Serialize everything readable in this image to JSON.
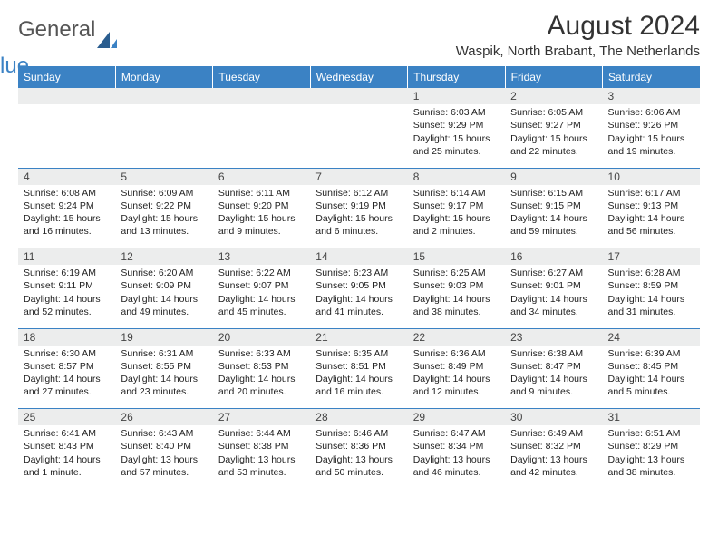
{
  "logo": {
    "text1": "General",
    "text2": "Blue"
  },
  "title": "August 2024",
  "location": "Waspik, North Brabant, The Netherlands",
  "colors": {
    "header_bg": "#3b82c4",
    "header_text": "#ffffff",
    "daynum_bg": "#eceded",
    "border": "#3b82c4",
    "body_text": "#222222"
  },
  "weekdays": [
    "Sunday",
    "Monday",
    "Tuesday",
    "Wednesday",
    "Thursday",
    "Friday",
    "Saturday"
  ],
  "weeks": [
    [
      null,
      null,
      null,
      null,
      {
        "n": "1",
        "sr": "Sunrise: 6:03 AM",
        "ss": "Sunset: 9:29 PM",
        "dl": "Daylight: 15 hours and 25 minutes."
      },
      {
        "n": "2",
        "sr": "Sunrise: 6:05 AM",
        "ss": "Sunset: 9:27 PM",
        "dl": "Daylight: 15 hours and 22 minutes."
      },
      {
        "n": "3",
        "sr": "Sunrise: 6:06 AM",
        "ss": "Sunset: 9:26 PM",
        "dl": "Daylight: 15 hours and 19 minutes."
      }
    ],
    [
      {
        "n": "4",
        "sr": "Sunrise: 6:08 AM",
        "ss": "Sunset: 9:24 PM",
        "dl": "Daylight: 15 hours and 16 minutes."
      },
      {
        "n": "5",
        "sr": "Sunrise: 6:09 AM",
        "ss": "Sunset: 9:22 PM",
        "dl": "Daylight: 15 hours and 13 minutes."
      },
      {
        "n": "6",
        "sr": "Sunrise: 6:11 AM",
        "ss": "Sunset: 9:20 PM",
        "dl": "Daylight: 15 hours and 9 minutes."
      },
      {
        "n": "7",
        "sr": "Sunrise: 6:12 AM",
        "ss": "Sunset: 9:19 PM",
        "dl": "Daylight: 15 hours and 6 minutes."
      },
      {
        "n": "8",
        "sr": "Sunrise: 6:14 AM",
        "ss": "Sunset: 9:17 PM",
        "dl": "Daylight: 15 hours and 2 minutes."
      },
      {
        "n": "9",
        "sr": "Sunrise: 6:15 AM",
        "ss": "Sunset: 9:15 PM",
        "dl": "Daylight: 14 hours and 59 minutes."
      },
      {
        "n": "10",
        "sr": "Sunrise: 6:17 AM",
        "ss": "Sunset: 9:13 PM",
        "dl": "Daylight: 14 hours and 56 minutes."
      }
    ],
    [
      {
        "n": "11",
        "sr": "Sunrise: 6:19 AM",
        "ss": "Sunset: 9:11 PM",
        "dl": "Daylight: 14 hours and 52 minutes."
      },
      {
        "n": "12",
        "sr": "Sunrise: 6:20 AM",
        "ss": "Sunset: 9:09 PM",
        "dl": "Daylight: 14 hours and 49 minutes."
      },
      {
        "n": "13",
        "sr": "Sunrise: 6:22 AM",
        "ss": "Sunset: 9:07 PM",
        "dl": "Daylight: 14 hours and 45 minutes."
      },
      {
        "n": "14",
        "sr": "Sunrise: 6:23 AM",
        "ss": "Sunset: 9:05 PM",
        "dl": "Daylight: 14 hours and 41 minutes."
      },
      {
        "n": "15",
        "sr": "Sunrise: 6:25 AM",
        "ss": "Sunset: 9:03 PM",
        "dl": "Daylight: 14 hours and 38 minutes."
      },
      {
        "n": "16",
        "sr": "Sunrise: 6:27 AM",
        "ss": "Sunset: 9:01 PM",
        "dl": "Daylight: 14 hours and 34 minutes."
      },
      {
        "n": "17",
        "sr": "Sunrise: 6:28 AM",
        "ss": "Sunset: 8:59 PM",
        "dl": "Daylight: 14 hours and 31 minutes."
      }
    ],
    [
      {
        "n": "18",
        "sr": "Sunrise: 6:30 AM",
        "ss": "Sunset: 8:57 PM",
        "dl": "Daylight: 14 hours and 27 minutes."
      },
      {
        "n": "19",
        "sr": "Sunrise: 6:31 AM",
        "ss": "Sunset: 8:55 PM",
        "dl": "Daylight: 14 hours and 23 minutes."
      },
      {
        "n": "20",
        "sr": "Sunrise: 6:33 AM",
        "ss": "Sunset: 8:53 PM",
        "dl": "Daylight: 14 hours and 20 minutes."
      },
      {
        "n": "21",
        "sr": "Sunrise: 6:35 AM",
        "ss": "Sunset: 8:51 PM",
        "dl": "Daylight: 14 hours and 16 minutes."
      },
      {
        "n": "22",
        "sr": "Sunrise: 6:36 AM",
        "ss": "Sunset: 8:49 PM",
        "dl": "Daylight: 14 hours and 12 minutes."
      },
      {
        "n": "23",
        "sr": "Sunrise: 6:38 AM",
        "ss": "Sunset: 8:47 PM",
        "dl": "Daylight: 14 hours and 9 minutes."
      },
      {
        "n": "24",
        "sr": "Sunrise: 6:39 AM",
        "ss": "Sunset: 8:45 PM",
        "dl": "Daylight: 14 hours and 5 minutes."
      }
    ],
    [
      {
        "n": "25",
        "sr": "Sunrise: 6:41 AM",
        "ss": "Sunset: 8:43 PM",
        "dl": "Daylight: 14 hours and 1 minute."
      },
      {
        "n": "26",
        "sr": "Sunrise: 6:43 AM",
        "ss": "Sunset: 8:40 PM",
        "dl": "Daylight: 13 hours and 57 minutes."
      },
      {
        "n": "27",
        "sr": "Sunrise: 6:44 AM",
        "ss": "Sunset: 8:38 PM",
        "dl": "Daylight: 13 hours and 53 minutes."
      },
      {
        "n": "28",
        "sr": "Sunrise: 6:46 AM",
        "ss": "Sunset: 8:36 PM",
        "dl": "Daylight: 13 hours and 50 minutes."
      },
      {
        "n": "29",
        "sr": "Sunrise: 6:47 AM",
        "ss": "Sunset: 8:34 PM",
        "dl": "Daylight: 13 hours and 46 minutes."
      },
      {
        "n": "30",
        "sr": "Sunrise: 6:49 AM",
        "ss": "Sunset: 8:32 PM",
        "dl": "Daylight: 13 hours and 42 minutes."
      },
      {
        "n": "31",
        "sr": "Sunrise: 6:51 AM",
        "ss": "Sunset: 8:29 PM",
        "dl": "Daylight: 13 hours and 38 minutes."
      }
    ]
  ]
}
